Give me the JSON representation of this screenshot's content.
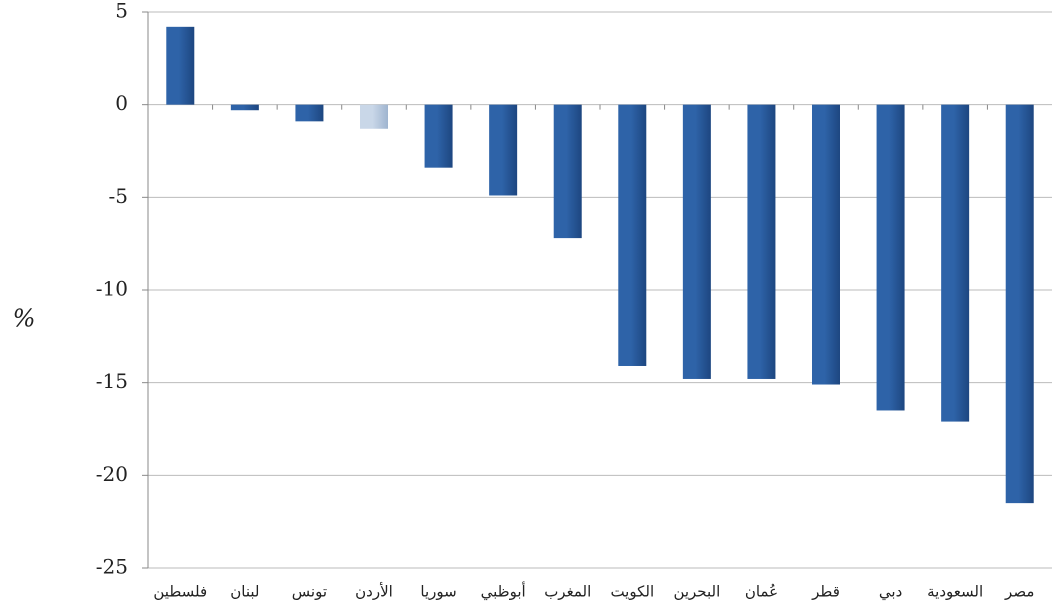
{
  "chart_data": {
    "type": "bar",
    "y_label": "%",
    "categories": [
      "فلسطين",
      "لبنان",
      "تونس",
      "الأردن",
      "سوريا",
      "أبوظبي",
      "المغرب",
      "الكويت",
      "البحرين",
      "عُمان",
      "قطر",
      "دبي",
      "السعودية",
      "مصر"
    ],
    "values": [
      4.2,
      -0.3,
      -0.9,
      -1.3,
      -3.4,
      -4.9,
      -7.2,
      -14.1,
      -14.8,
      -14.8,
      -15.1,
      -16.5,
      -17.1,
      -21.5
    ],
    "colors": [
      "#2e63a8",
      "#2e63a8",
      "#2e63a8",
      "#c9d7e8",
      "#2e63a8",
      "#2e63a8",
      "#2e63a8",
      "#2e63a8",
      "#2e63a8",
      "#2e63a8",
      "#2e63a8",
      "#2e63a8",
      "#2e63a8",
      "#2e63a8"
    ],
    "ylim": [
      -25,
      5
    ],
    "yticks": [
      5,
      0,
      -5,
      -10,
      -15,
      -20,
      -25
    ],
    "grid": true
  }
}
